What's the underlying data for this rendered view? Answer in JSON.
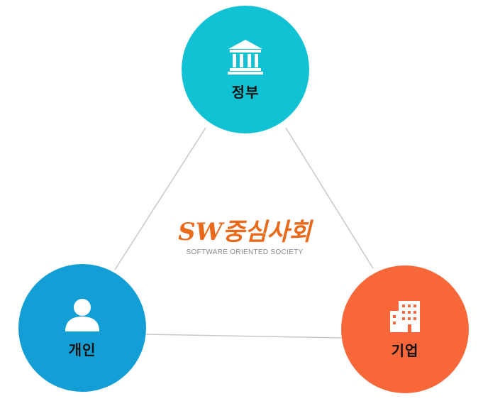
{
  "nodes": {
    "government": {
      "label": "정부",
      "icon": "building-columns-icon",
      "color": "#11c2d4"
    },
    "person": {
      "label": "개인",
      "icon": "person-icon",
      "color": "#149ed6"
    },
    "company": {
      "label": "기업",
      "icon": "office-building-icon",
      "color": "#f7673a"
    }
  },
  "logo": {
    "mark": "SW중심사회",
    "tagline": "SOFTWARE ORIENTED SOCIETY",
    "color": "#ea6a1c"
  },
  "connector_color": "#c8c8c8"
}
